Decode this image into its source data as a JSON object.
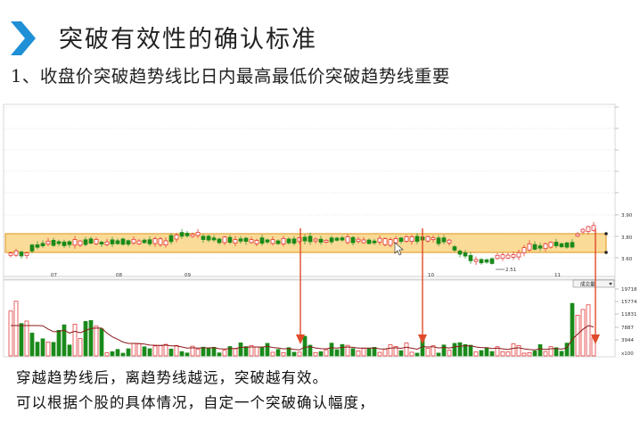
{
  "slide": {
    "title": "突破有效性的确认标准",
    "subtitle": "1、收盘价突破趋势线比日内最高最低价突破趋势线重要"
  },
  "chart": {
    "price_ticks": [
      "3.90",
      "3.80",
      "3.60",
      "2.51"
    ],
    "date_labels": [
      "07",
      "08",
      "09",
      "10",
      "11"
    ],
    "volume_ticks": [
      "19718",
      "15774",
      "11831",
      "7887",
      "3944",
      "x100"
    ],
    "volume_button": "成交量"
  },
  "notes": {
    "line1": "穿越趋势线后，离趋势线越远，突破越有效。",
    "line2": "可以根据个股的具体情况，自定一个突破确认幅度，"
  },
  "colors": {
    "band_fill": "#f9d27d",
    "band_border": "#e2a43a",
    "up_candle": "#e02020",
    "down_candle": "#1a8a1a",
    "arrow": "#e04a2a",
    "title_chevron": "#1f8fd6",
    "ma_line": "#8b1a1a"
  },
  "icons": {
    "title_chevron": "chevron-right-icon",
    "cursor": "mouse-cursor-icon"
  }
}
